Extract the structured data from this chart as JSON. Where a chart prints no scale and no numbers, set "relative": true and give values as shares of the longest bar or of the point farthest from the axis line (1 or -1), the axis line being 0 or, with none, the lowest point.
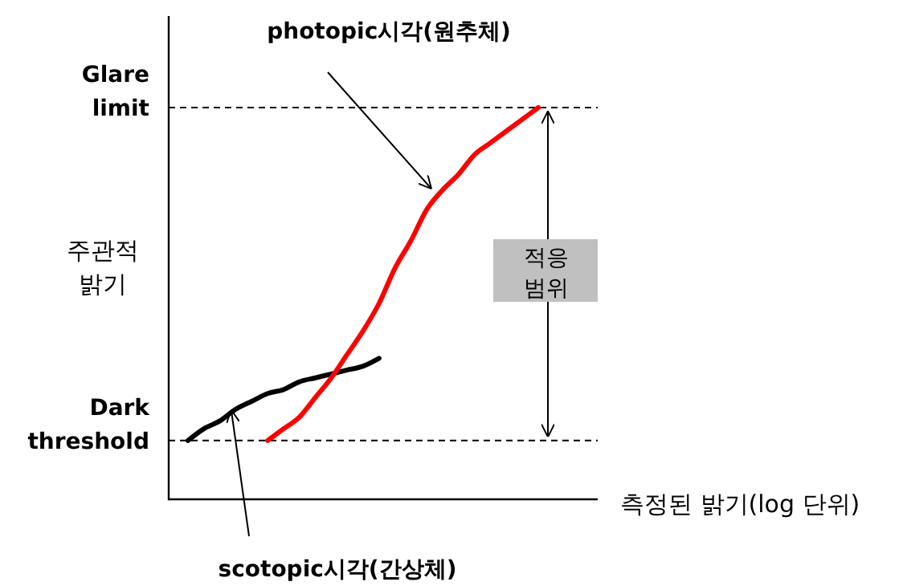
{
  "chart_data": {
    "type": "line",
    "relative": true,
    "ylabel": "주관적\n밝기",
    "xlabel": "측정된 밝기(log 단위)",
    "categories": [
      null,
      null,
      null,
      null,
      null,
      null,
      null,
      null,
      null,
      null,
      null,
      null,
      null,
      null,
      null,
      null,
      null,
      null,
      null,
      null,
      null,
      null,
      null
    ],
    "series": [
      {
        "color": "#000000",
        "values": [
          0.15,
          0.18,
          0.2,
          0.23,
          0.25,
          0.27,
          0.28,
          0.3,
          0.31,
          0.32,
          0.33,
          0.34,
          0.36,
          null,
          null,
          null,
          null,
          null,
          null,
          null,
          null,
          null,
          null
        ]
      },
      {
        "color": "#ff0000",
        "values": [
          null,
          null,
          null,
          null,
          null,
          0.15,
          0.18,
          0.21,
          0.26,
          0.31,
          0.37,
          0.43,
          0.5,
          0.59,
          0.66,
          0.74,
          0.79,
          0.83,
          0.88,
          0.91,
          0.94,
          0.97,
          1
        ]
      }
    ],
    "ref_lines": [
      {
        "axis": "y",
        "value": 1,
        "label": "Glare\nlimit",
        "color": "#000000",
        "line_style": "dashed"
      },
      {
        "axis": "y",
        "value": 0.15,
        "label": "Dark\nthreshold",
        "color": "#000000",
        "line_style": "dashed"
      }
    ],
    "annotations": [
      "photopic시각(원추체)",
      "scotopic시각(간상체)",
      "적응\n범위"
    ]
  }
}
